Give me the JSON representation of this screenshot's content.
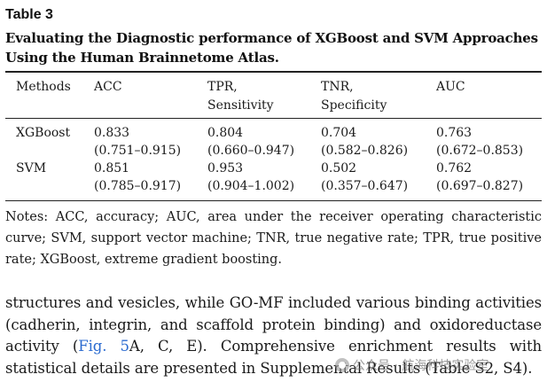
{
  "table": {
    "label": "Table 3",
    "caption": "Evaluating the Diagnostic performance of XGBoost and SVM Approaches Using the Human Brainnetome Atlas.",
    "headers": [
      "Methods",
      "ACC",
      "TPR,\nSensitivity",
      "TNR,\nSpecificity",
      "AUC"
    ],
    "rows": [
      {
        "method": "XGBoost",
        "values": [
          [
            "0.833",
            "(0.751–0.915)"
          ],
          [
            "0.804",
            "(0.660–0.947)"
          ],
          [
            "0.704",
            "(0.582–0.826)"
          ],
          [
            "0.763",
            "(0.672–0.853)"
          ]
        ]
      },
      {
        "method": "SVM",
        "values": [
          [
            "0.851",
            "(0.785–0.917)"
          ],
          [
            "0.953",
            "(0.904–1.002)"
          ],
          [
            "0.502",
            "(0.357–0.647)"
          ],
          [
            "0.762",
            "(0.697–0.827)"
          ]
        ]
      }
    ],
    "notes": "Notes: ACC, accuracy; AUC, area under the receiver operating characteristic curve; SVM, support vector machine; TNR, true negative rate; TPR, true positive rate; XGBoost, extreme gradient boosting."
  },
  "body": {
    "text_before_link": "structures and vesicles, while GO-MF included various binding activities (cadherin, integrin, and scaffold protein binding) and oxidoreductase activity (",
    "link_text": "Fig. 5",
    "text_after_link": "A, C, E). Comprehensive enrichment results with statistical details are presented in Supplemental Results (Table S2, S4)."
  },
  "watermark": {
    "text": "公众号 · 航海科技实验室",
    "icon": "wechat-icon"
  }
}
